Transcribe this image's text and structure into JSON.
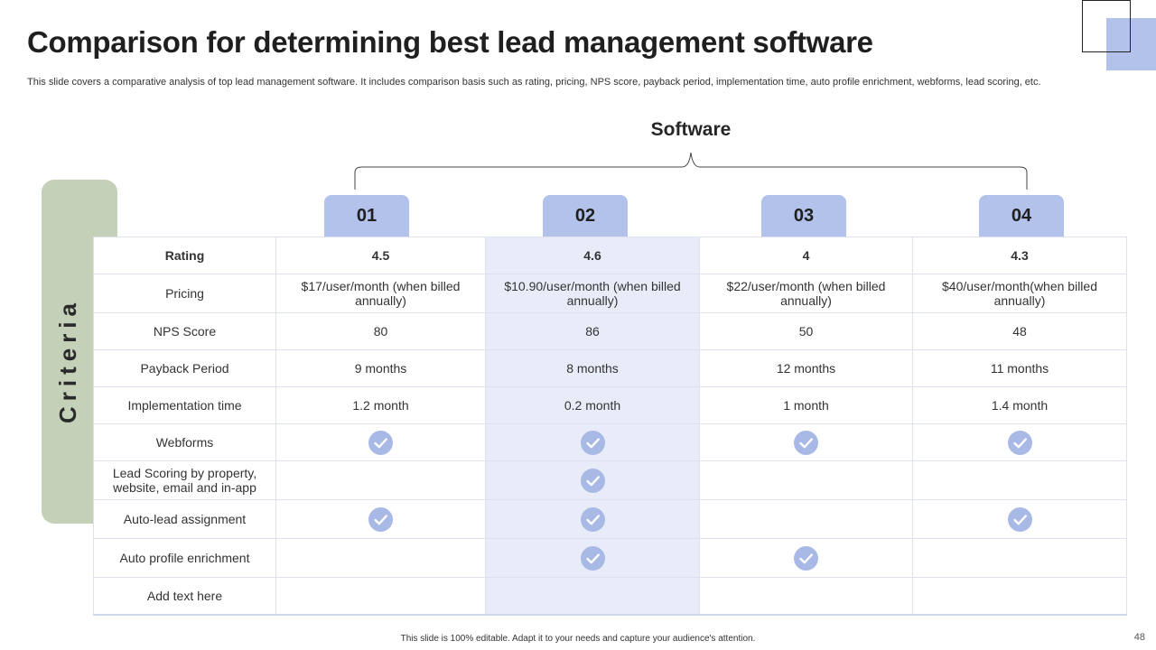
{
  "title": "Comparison for determining best lead management software",
  "subtitle": "This slide covers a comparative analysis of top lead management software. It includes comparison basis such as rating, pricing, NPS score, payback period, implementation time, auto profile enrichment, webforms, lead scoring, etc.",
  "software_label": "Software",
  "criteria_label": "Criteria",
  "columns": [
    "01",
    "02",
    "03",
    "04"
  ],
  "rows": [
    {
      "label": "Rating",
      "values": [
        "4.5",
        "4.6",
        "4",
        "4.3"
      ]
    },
    {
      "label": "Pricing",
      "values": [
        "$17/user/month (when billed annually)",
        "$10.90/user/month (when billed annually)",
        "$22/user/month (when billed annually)",
        "$40/user/month(when billed annually)"
      ]
    },
    {
      "label": "NPS  Score",
      "values": [
        "80",
        "86",
        "50",
        "48"
      ]
    },
    {
      "label": "Payback Period",
      "values": [
        "9 months",
        "8 months",
        "12 months",
        "11 months"
      ]
    },
    {
      "label": "Implementation time",
      "values": [
        "1.2 month",
        "0.2 month",
        "1 month",
        "1.4 month"
      ]
    },
    {
      "label": "Webforms",
      "checks": [
        true,
        true,
        true,
        true
      ]
    },
    {
      "label": "Lead Scoring by property, website, email and in-app",
      "checks": [
        false,
        true,
        false,
        false
      ]
    },
    {
      "label": "Auto-lead assignment",
      "checks": [
        true,
        true,
        false,
        true
      ]
    },
    {
      "label": "Auto profile enrichment",
      "checks": [
        false,
        true,
        true,
        false
      ]
    },
    {
      "label": "Add text here",
      "checks": [
        false,
        false,
        false,
        false
      ]
    }
  ],
  "footer": "This slide is 100% editable. Adapt it to your needs and capture your audience's attention.",
  "page_number": "48",
  "colors": {
    "accent": "#b3c2ea",
    "criteria_bar": "#c5d0b8",
    "highlight_column": "#e8ecf8",
    "check": "#a9b9e6"
  }
}
